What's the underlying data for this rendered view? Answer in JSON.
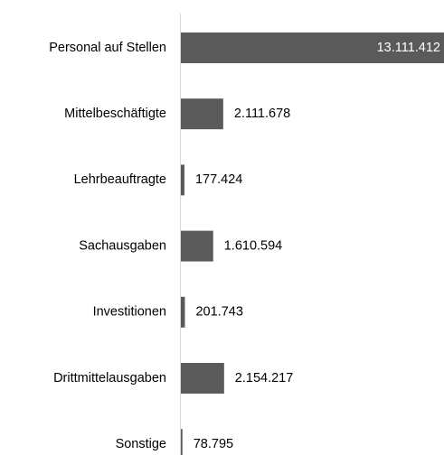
{
  "chart_data": {
    "type": "bar",
    "orientation": "horizontal",
    "categories": [
      "Personal auf Stellen",
      "Mittelbeschäftigte",
      "Lehrbeauftragte",
      "Sachausgaben",
      "Investitionen",
      "Drittmittelausgaben",
      "Sonstige"
    ],
    "values": [
      13111412,
      2111678,
      177424,
      1610594,
      201743,
      2154217,
      78795
    ],
    "value_labels": [
      "13.111.412",
      "2.111.678",
      "177.424",
      "1.610.594",
      "201.743",
      "2.154.217",
      "78.795"
    ],
    "color": "#5a5a5a"
  }
}
